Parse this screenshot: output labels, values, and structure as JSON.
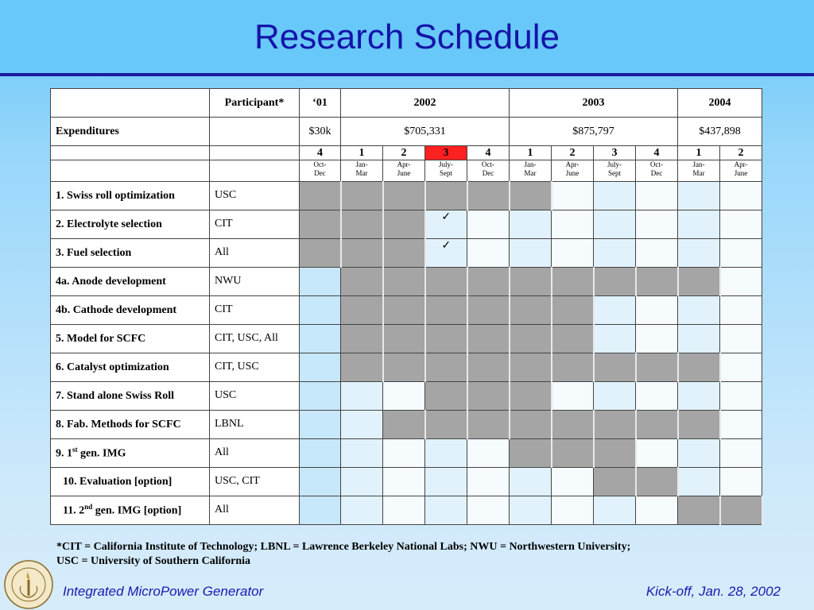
{
  "slide": {
    "title": "Research Schedule",
    "footer_left": "Integrated MicroPower Generator",
    "footer_right": "Kick-off, Jan. 28, 2002",
    "footnote_line1": "*CIT = California Institute of Technology; LBNL = Lawrence Berkeley National Labs; NWU = Northwestern University;",
    "footnote_line2": "USC = University of Southern California",
    "seal_text": "CALIFORNIA INSTITUTE OF TECHNOLOGY",
    "seal_year": "1891"
  },
  "table": {
    "participant_header": "Participant*",
    "years": [
      "‘01",
      "2002",
      "2003",
      "2004"
    ],
    "expenditures_label": "Expenditures",
    "expenditures": [
      "$30k",
      "$705,331",
      "$875,797",
      "$437,898"
    ],
    "quarters": [
      "4",
      "1",
      "2",
      "3",
      "4",
      "1",
      "2",
      "3",
      "4",
      "1",
      "2"
    ],
    "highlight_quarter_index": 3,
    "months": [
      [
        "Oct-",
        "Dec"
      ],
      [
        "Jan-",
        "Mar"
      ],
      [
        "Apr-",
        "June"
      ],
      [
        "July-",
        "Sept"
      ],
      [
        "Oct-",
        "Dec"
      ],
      [
        "Jan-",
        "Mar"
      ],
      [
        "Apr-",
        "June"
      ],
      [
        "July-",
        "Sept"
      ],
      [
        "Oct-",
        "Dec"
      ],
      [
        "Jan-",
        "Mar"
      ],
      [
        "Apr-",
        "June"
      ]
    ],
    "checkmark": "✓",
    "tasks": [
      {
        "name": "1. Swiss roll optimization",
        "participant": "USC",
        "active": [
          1,
          1,
          1,
          1,
          1,
          1,
          0,
          0,
          0,
          0,
          0
        ],
        "check_at": -1
      },
      {
        "name": "2. Electrolyte selection",
        "participant": "CIT",
        "active": [
          1,
          1,
          1,
          0,
          0,
          0,
          0,
          0,
          0,
          0,
          0
        ],
        "check_at": 3
      },
      {
        "name": "3. Fuel selection",
        "participant": "All",
        "active": [
          1,
          1,
          1,
          0,
          0,
          0,
          0,
          0,
          0,
          0,
          0
        ],
        "check_at": 3
      },
      {
        "name": "4a. Anode development",
        "participant": "NWU",
        "active": [
          0,
          1,
          1,
          1,
          1,
          1,
          1,
          1,
          1,
          1,
          0
        ],
        "check_at": -1
      },
      {
        "name": "4b. Cathode development",
        "participant": "CIT",
        "active": [
          0,
          1,
          1,
          1,
          1,
          1,
          1,
          0,
          0,
          0,
          0
        ],
        "check_at": -1
      },
      {
        "name": "5. Model for SCFC",
        "participant": "CIT, USC, All",
        "active": [
          0,
          1,
          1,
          1,
          1,
          1,
          1,
          0,
          0,
          0,
          0
        ],
        "check_at": -1
      },
      {
        "name": "6. Catalyst optimization",
        "participant": "CIT, USC",
        "active": [
          0,
          1,
          1,
          1,
          1,
          1,
          1,
          1,
          1,
          1,
          0
        ],
        "check_at": -1
      },
      {
        "name": "7. Stand alone Swiss Roll",
        "participant": "USC",
        "active": [
          0,
          0,
          0,
          1,
          1,
          1,
          0,
          0,
          0,
          0,
          0
        ],
        "check_at": -1
      },
      {
        "name": "8. Fab. Methods for SCFC",
        "participant": "LBNL",
        "active": [
          0,
          0,
          1,
          1,
          1,
          1,
          1,
          1,
          1,
          1,
          0
        ],
        "check_at": -1
      },
      {
        "name_pre": "9. 1",
        "name_sup": "st",
        "name_post": " gen. IMG",
        "participant": "All",
        "active": [
          0,
          0,
          0,
          0,
          0,
          1,
          1,
          1,
          0,
          0,
          0
        ],
        "check_at": -1
      },
      {
        "name": "10. Evaluation [option]",
        "participant": "USC, CIT",
        "active": [
          0,
          0,
          0,
          0,
          0,
          0,
          0,
          1,
          1,
          0,
          0
        ],
        "check_at": -1,
        "indent": true
      },
      {
        "name_pre": "11. 2",
        "name_sup": "nd",
        "name_post": " gen. IMG [option]",
        "participant": "All",
        "active": [
          0,
          0,
          0,
          0,
          0,
          0,
          0,
          0,
          0,
          1,
          1
        ],
        "check_at": -1,
        "indent": true
      }
    ]
  }
}
